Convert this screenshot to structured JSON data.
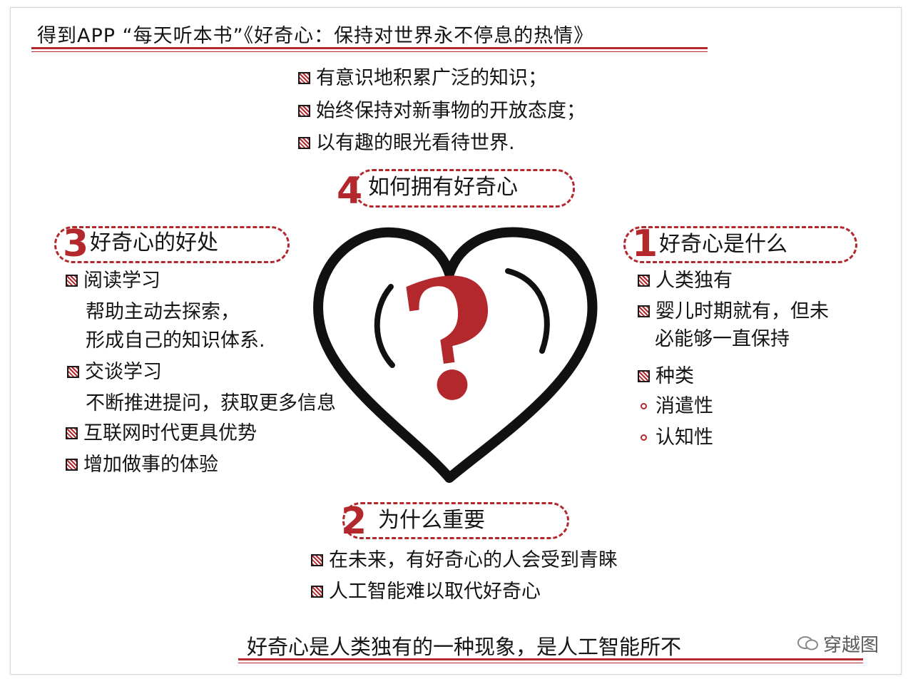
{
  "header": {
    "title": "得到APP “每天听本书”《好奇心：保持对世界永不停息的热情》"
  },
  "top_list": [
    "有意识地积累广泛的知识；",
    "始终保持对新事物的开放态度；",
    "以有趣的眼光看待世界."
  ],
  "sections": {
    "s4": {
      "number": "4",
      "title": "如何拥有好奇心"
    },
    "s3": {
      "number": "3",
      "title": "好奇心的好处",
      "items": [
        {
          "label": "阅读学习",
          "details": [
            "帮助主动去探索，",
            "形成自己的知识体系."
          ]
        },
        {
          "label": "交谈学习",
          "details": [
            "不断推进提问，获取更多信息"
          ]
        },
        {
          "label": "互联网时代更具优势",
          "details": []
        },
        {
          "label": "增加做事的体验",
          "details": []
        }
      ]
    },
    "s1": {
      "number": "1",
      "title": "好奇心是什么",
      "items": [
        {
          "label": "人类独有"
        },
        {
          "label": "婴儿时期就有，但未",
          "continuation": "必能够一直保持"
        },
        {
          "label": "种类"
        }
      ],
      "subitems": [
        "消遣性",
        "认知性"
      ]
    },
    "s2": {
      "number": "2",
      "title": "为什么重要",
      "items": [
        "在未来，有好奇心的人会受到青睐",
        "人工智能难以取代好奇心"
      ]
    }
  },
  "center": {
    "symbol": "?",
    "icon": "heart-question-icon"
  },
  "footer": {
    "summary": "好奇心是人类独有的一种现象，是人工智能所不",
    "watermark": "穿越图"
  },
  "colors": {
    "accent": "#b3282d",
    "ink": "#141414",
    "background": "#ffffff"
  }
}
